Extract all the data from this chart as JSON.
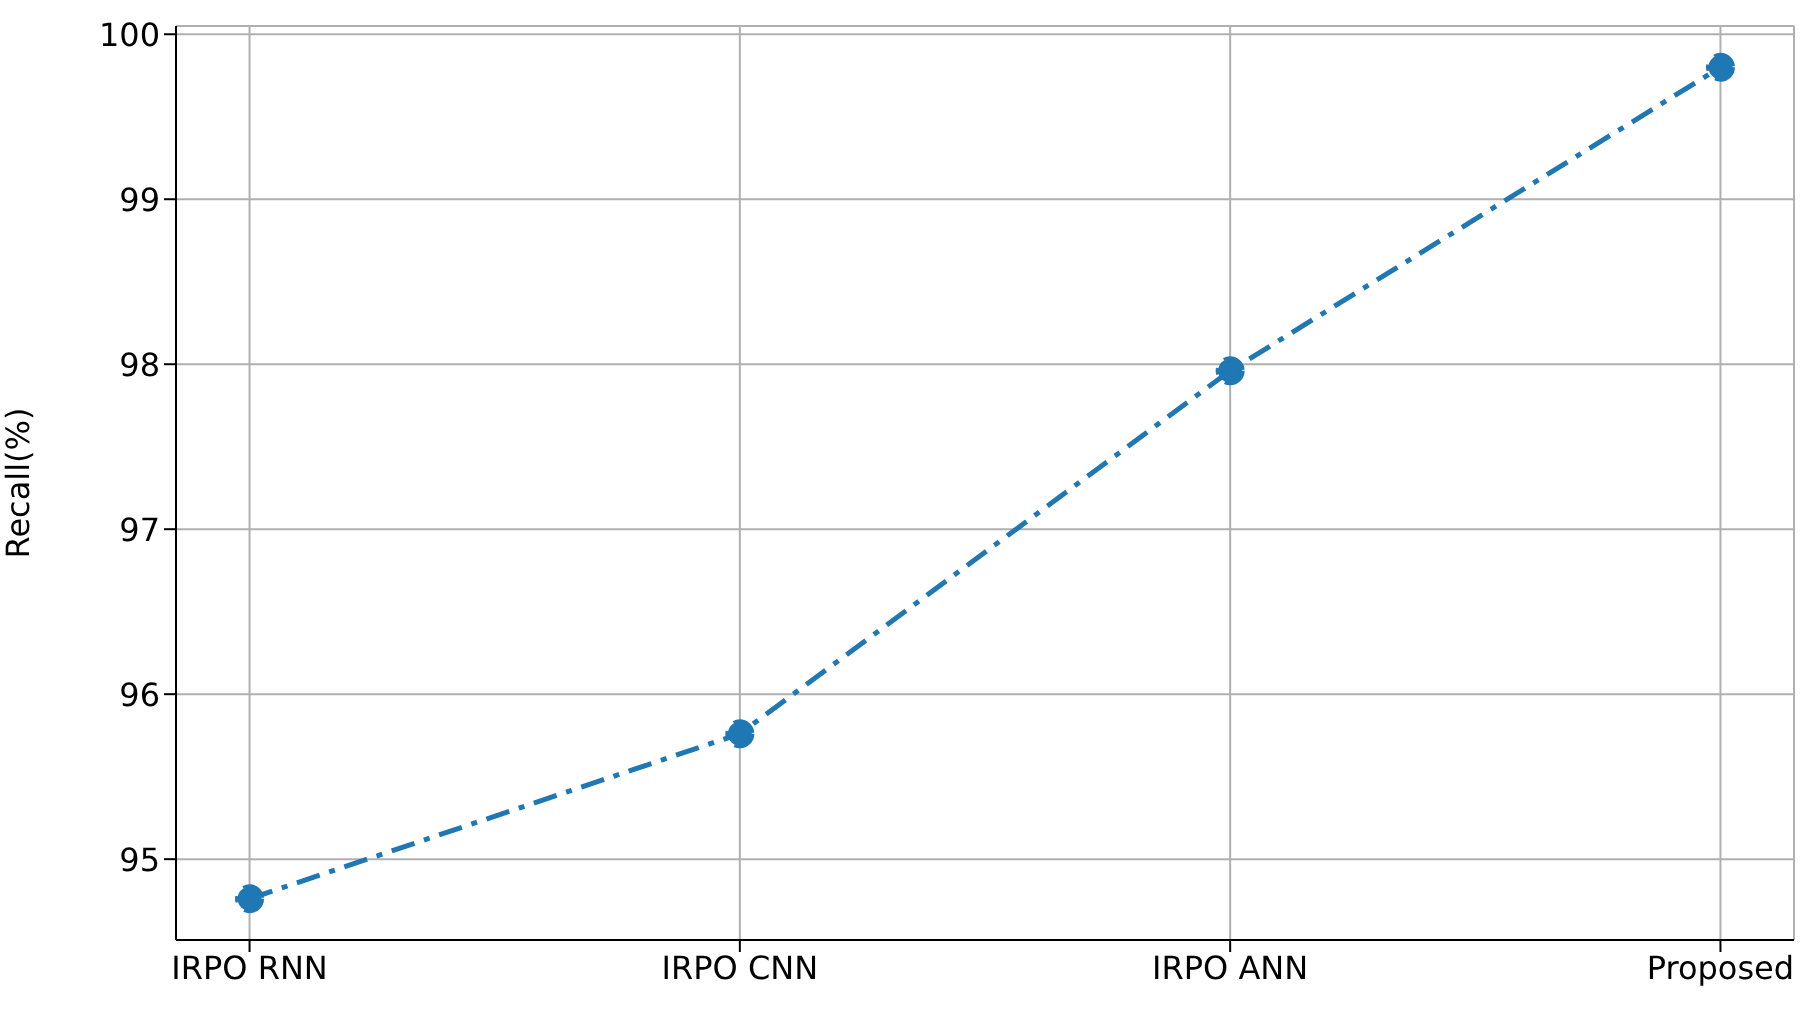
{
  "chart_data": {
    "type": "line",
    "ylabel": "Recall(%)",
    "categories": [
      "IRPO RNN",
      "IRPO CNN",
      "IRPO ANN",
      "Proposed"
    ],
    "series": [
      {
        "color": "#1f77b4",
        "values": [
          94.76,
          95.76,
          97.96,
          99.8
        ]
      }
    ],
    "ylim": [
      94.51,
      100.05
    ],
    "yticks": [
      95,
      96,
      97,
      98,
      99,
      100
    ],
    "grid": true,
    "marker": "circle",
    "line_style": "dashed",
    "legend": false
  }
}
